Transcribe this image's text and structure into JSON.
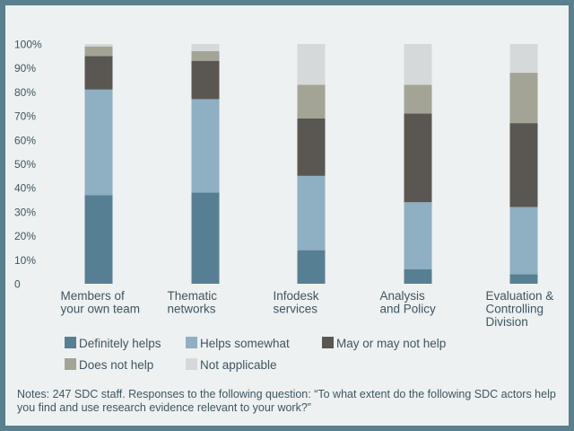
{
  "chart_data": {
    "type": "stacked-bar",
    "categories": [
      [
        "Members of",
        "your own team"
      ],
      [
        "Thematic",
        "networks"
      ],
      [
        "Infodesk",
        "services"
      ],
      [
        "Analysis",
        "and Policy"
      ],
      [
        "Evaluation &",
        "Controlling",
        "Division"
      ]
    ],
    "y_ticks": [
      "0",
      "10%",
      "20%",
      "30%",
      "40%",
      "50%",
      "60%",
      "70%",
      "80%",
      "90%",
      "100%"
    ],
    "ylim": [
      0,
      100
    ],
    "series": [
      {
        "name": "Definitely helps",
        "color": "#577f93",
        "values": [
          37,
          38,
          14,
          6,
          4
        ]
      },
      {
        "name": "Helps somewhat",
        "color": "#8fafc2",
        "values": [
          44,
          39,
          31,
          28,
          28
        ]
      },
      {
        "name": "May or may not help",
        "color": "#5a5652",
        "values": [
          14,
          16,
          24,
          37,
          35
        ]
      },
      {
        "name": "Does not help",
        "color": "#a3a496",
        "values": [
          4,
          4,
          14,
          12,
          21
        ]
      },
      {
        "name": "Not applicable",
        "color": "#d6d9da",
        "values": [
          1,
          3,
          17,
          17,
          12
        ]
      }
    ],
    "legend_rows": [
      [
        0,
        1,
        2
      ],
      [
        3,
        4
      ]
    ],
    "grid": false,
    "legend_placement": "bottom"
  },
  "notes": "Notes: 247 SDC staff. Responses to the following question: “To what extent do the following SDC actors help you find and use research evidence relevant to your work?”"
}
